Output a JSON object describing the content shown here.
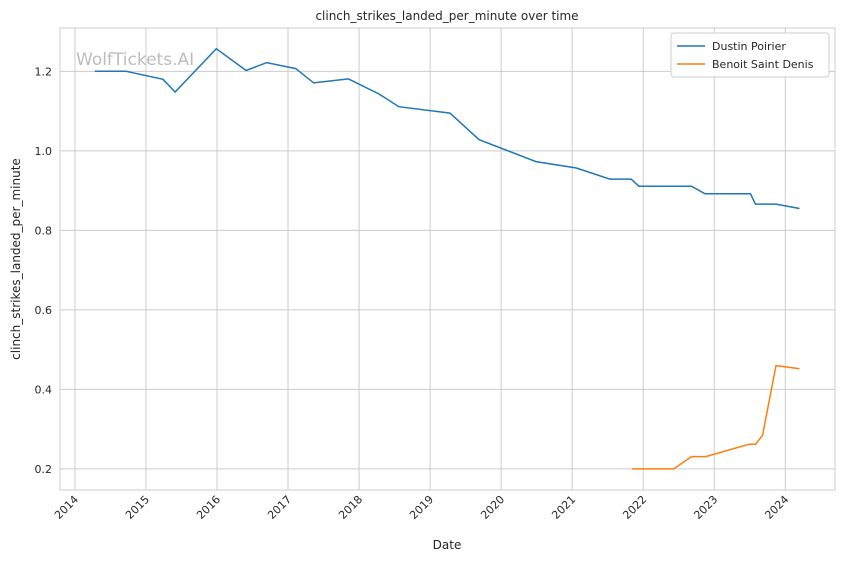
{
  "chart_data": {
    "type": "line",
    "title": "clinch_strikes_landed_per_minute over time",
    "xlabel": "Date",
    "ylabel": "clinch_strikes_landed_per_minute",
    "xlim": [
      2013.79,
      2024.7
    ],
    "ylim": [
      0.147,
      1.309
    ],
    "grid": true,
    "legend_position": "top-right",
    "x_ticks": [
      2014,
      2015,
      2016,
      2017,
      2018,
      2019,
      2020,
      2021,
      2022,
      2023,
      2024
    ],
    "x_tick_labels": [
      "2014",
      "2015",
      "2016",
      "2017",
      "2018",
      "2019",
      "2020",
      "2021",
      "2022",
      "2023",
      "2024"
    ],
    "y_ticks": [
      0.2,
      0.4,
      0.6,
      0.8,
      1.0,
      1.2
    ],
    "y_tick_labels": [
      "0.2",
      "0.4",
      "0.6",
      "0.8",
      "1.0",
      "1.2"
    ],
    "watermark": "WolfTickets.AI",
    "series": [
      {
        "name": "Dustin Poirier",
        "color": "#1f77b4",
        "x": [
          2014.28,
          2014.72,
          2015.24,
          2015.41,
          2015.99,
          2016.41,
          2016.7,
          2017.11,
          2017.36,
          2017.85,
          2018.28,
          2018.56,
          2019.28,
          2019.69,
          2020.49,
          2021.06,
          2021.53,
          2021.83,
          2021.94,
          2022.68,
          2022.87,
          2023.51,
          2023.58,
          2023.87,
          2024.2
        ],
        "y": [
          1.2,
          1.2,
          1.18,
          1.148,
          1.257,
          1.202,
          1.222,
          1.207,
          1.171,
          1.181,
          1.143,
          1.111,
          1.095,
          1.028,
          0.973,
          0.957,
          0.929,
          0.929,
          0.911,
          0.911,
          0.892,
          0.892,
          0.866,
          0.866,
          0.855
        ]
      },
      {
        "name": "Benoit Saint Denis",
        "color": "#ff7f0e",
        "x": [
          2021.84,
          2022.43,
          2022.68,
          2022.88,
          2023.49,
          2023.58,
          2023.68,
          2023.87,
          2024.2
        ],
        "y": [
          0.2,
          0.2,
          0.231,
          0.231,
          0.262,
          0.262,
          0.284,
          0.46,
          0.452
        ]
      }
    ]
  }
}
